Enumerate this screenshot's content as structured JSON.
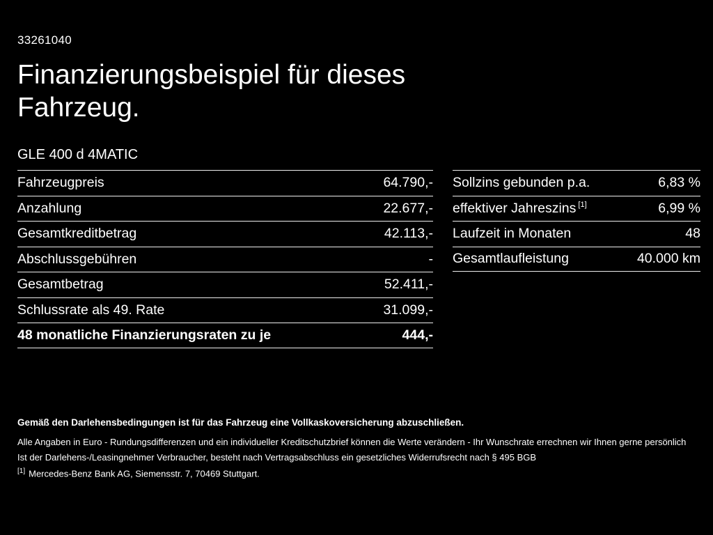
{
  "page": {
    "document_id": "33261040",
    "title": "Finanzierungsbeispiel für dieses Fahrzeug.",
    "vehicle_model": "GLE 400 d 4MATIC"
  },
  "financing_table": {
    "rows": [
      {
        "label": "Fahrzeugpreis",
        "value": "64.790,-"
      },
      {
        "label": "Anzahlung",
        "value": "22.677,-"
      },
      {
        "label": "Gesamtkreditbetrag",
        "value": "42.113,-"
      },
      {
        "label": "Abschlussgebühren",
        "value": "-"
      },
      {
        "label": "Gesamtbetrag",
        "value": "52.411,-"
      },
      {
        "label": "Schlussrate als 49. Rate",
        "value": "31.099,-"
      },
      {
        "label": "48 monatliche Finanzierungsraten zu je",
        "value": "444,-"
      }
    ]
  },
  "conditions_table": {
    "rows": [
      {
        "label": "Sollzins gebunden p.a.",
        "value": "6,83 %"
      },
      {
        "label": "effektiver Jahreszins",
        "sup": "[1]",
        "value": "6,99 %"
      },
      {
        "label": "Laufzeit in Monaten",
        "value": "48"
      },
      {
        "label": "Gesamtlaufleistung",
        "value": "40.000 km"
      }
    ]
  },
  "footer": {
    "insurance_note": "Gemäß den Darlehensbedingungen ist für das Fahrzeug eine Vollkaskoversicherung abzuschließen.",
    "note_line1": "Alle Angaben in Euro - Rundungsdifferenzen und ein individueller Kreditschutzbrief können die Werte verändern - Ihr Wunschrate errechnen wir Ihnen gerne persönlich",
    "note_line2": "Ist der Darlehens-/Leasingnehmer Verbraucher, besteht nach Vertragsabschluss ein gesetzliches Widerrufsrecht nach § 495 BGB",
    "footnote_marker": "[1]",
    "footnote_text": "Mercedes-Benz Bank AG, Siemensstr. 7, 70469 Stuttgart."
  },
  "colors": {
    "background": "#000000",
    "text": "#ffffff",
    "divider": "#f0f0f0"
  }
}
